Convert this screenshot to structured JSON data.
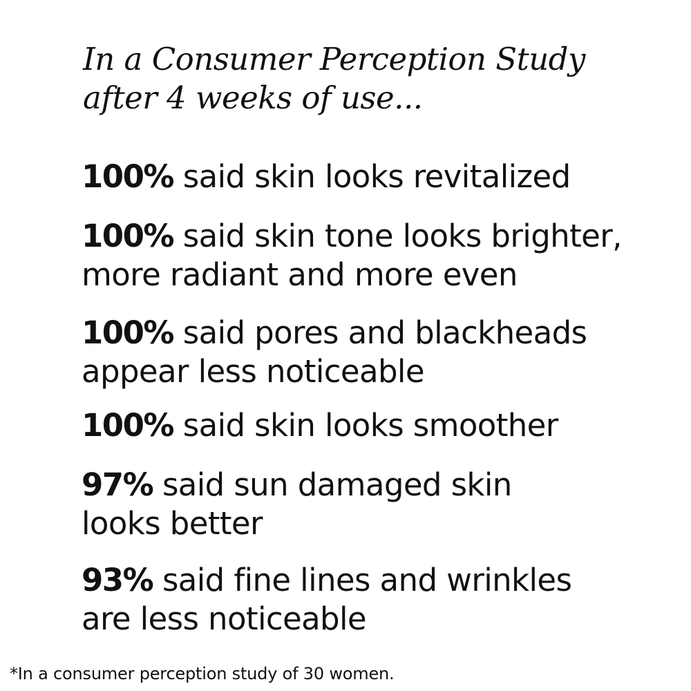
{
  "heading": {
    "line1": "In a Consumer Perception Study",
    "line2": "after 4 weeks of use..."
  },
  "claims": [
    {
      "percent": "100%",
      "line1": "said skin looks revitalized",
      "line2": ""
    },
    {
      "percent": "100%",
      "line1": "said skin tone looks brighter,",
      "line2": "more radiant and more even"
    },
    {
      "percent": "100%",
      "line1": "said pores and blackheads",
      "line2": "appear less noticeable"
    },
    {
      "percent": "100%",
      "line1": "said skin looks smoother",
      "line2": ""
    },
    {
      "percent": "97%",
      "line1": "said sun damaged skin",
      "line2": "looks better"
    },
    {
      "percent": "93%",
      "line1": "said fine lines and wrinkles",
      "line2": "are less noticeable"
    }
  ],
  "footnote": "*In a consumer perception study of 30 women."
}
